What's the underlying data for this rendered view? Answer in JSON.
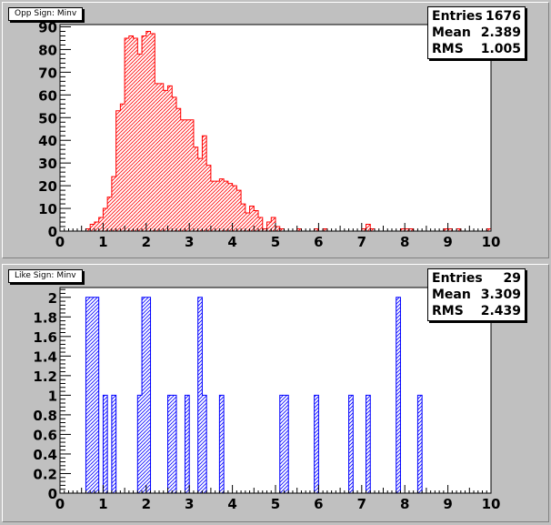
{
  "chart_data": [
    {
      "type": "histogram",
      "title": "Opp Sign: Minv",
      "fill_color": "#ff0000",
      "stats": {
        "entries_label": "Entries",
        "entries": "1676",
        "mean_label": "Mean",
        "mean": "2.389",
        "rms_label": "RMS",
        "rms": "1.005"
      },
      "bin_width": 0.1,
      "xlim": [
        0,
        10
      ],
      "ylim": [
        0,
        91
      ],
      "x_ticks": [
        "0",
        "1",
        "2",
        "3",
        "4",
        "5",
        "6",
        "7",
        "8",
        "9",
        "10"
      ],
      "y_ticks": [
        "0",
        "10",
        "20",
        "30",
        "40",
        "50",
        "60",
        "70",
        "80",
        "90"
      ],
      "bins": [
        [
          0.6,
          1
        ],
        [
          0.7,
          3
        ],
        [
          0.8,
          4
        ],
        [
          0.9,
          6
        ],
        [
          1.0,
          10
        ],
        [
          1.1,
          15
        ],
        [
          1.2,
          24
        ],
        [
          1.3,
          53
        ],
        [
          1.4,
          56
        ],
        [
          1.5,
          85
        ],
        [
          1.6,
          86
        ],
        [
          1.7,
          85
        ],
        [
          1.8,
          78
        ],
        [
          1.9,
          86
        ],
        [
          2.0,
          88
        ],
        [
          2.1,
          87
        ],
        [
          2.2,
          65
        ],
        [
          2.3,
          65
        ],
        [
          2.4,
          62
        ],
        [
          2.5,
          64
        ],
        [
          2.6,
          59
        ],
        [
          2.7,
          54
        ],
        [
          2.8,
          49
        ],
        [
          2.9,
          49
        ],
        [
          3.0,
          49
        ],
        [
          3.1,
          37
        ],
        [
          3.2,
          32
        ],
        [
          3.3,
          42
        ],
        [
          3.4,
          29
        ],
        [
          3.5,
          22
        ],
        [
          3.6,
          22
        ],
        [
          3.7,
          23
        ],
        [
          3.8,
          22
        ],
        [
          3.9,
          21
        ],
        [
          4.0,
          20
        ],
        [
          4.1,
          18
        ],
        [
          4.2,
          12
        ],
        [
          4.3,
          8
        ],
        [
          4.4,
          11
        ],
        [
          4.5,
          9
        ],
        [
          4.6,
          6
        ],
        [
          4.7,
          1
        ],
        [
          4.8,
          4
        ],
        [
          4.9,
          6
        ],
        [
          5.0,
          2
        ],
        [
          5.1,
          1
        ],
        [
          5.5,
          1
        ],
        [
          5.9,
          1
        ],
        [
          6.1,
          1
        ],
        [
          7.0,
          1
        ],
        [
          7.1,
          3
        ],
        [
          7.2,
          1
        ],
        [
          7.9,
          1
        ],
        [
          8.0,
          1
        ],
        [
          8.1,
          1
        ],
        [
          8.9,
          1
        ],
        [
          9.0,
          1
        ],
        [
          9.2,
          1
        ],
        [
          9.9,
          1
        ]
      ]
    },
    {
      "type": "histogram",
      "title": "Like Sign: Minv",
      "fill_color": "#0000ff",
      "stats": {
        "entries_label": "Entries",
        "entries": "29",
        "mean_label": "Mean",
        "mean": "3.309",
        "rms_label": "RMS",
        "rms": "2.439"
      },
      "bin_width": 0.1,
      "xlim": [
        0,
        10
      ],
      "ylim": [
        0,
        2.1
      ],
      "x_ticks": [
        "0",
        "1",
        "2",
        "3",
        "4",
        "5",
        "6",
        "7",
        "8",
        "9",
        "10"
      ],
      "y_ticks": [
        "0",
        "0.2",
        "0.4",
        "0.6",
        "0.8",
        "1",
        "1.2",
        "1.4",
        "1.6",
        "1.8",
        "2"
      ],
      "bins": [
        [
          0.6,
          2
        ],
        [
          0.7,
          2
        ],
        [
          0.8,
          2
        ],
        [
          1.0,
          1
        ],
        [
          1.2,
          1
        ],
        [
          1.8,
          1
        ],
        [
          1.9,
          2
        ],
        [
          2.0,
          2
        ],
        [
          2.5,
          1
        ],
        [
          2.6,
          1
        ],
        [
          2.9,
          1
        ],
        [
          3.2,
          2
        ],
        [
          3.3,
          1
        ],
        [
          3.7,
          1
        ],
        [
          5.1,
          1
        ],
        [
          5.2,
          1
        ],
        [
          5.9,
          1
        ],
        [
          6.7,
          1
        ],
        [
          7.1,
          1
        ],
        [
          7.8,
          2
        ],
        [
          8.3,
          1
        ]
      ]
    }
  ]
}
